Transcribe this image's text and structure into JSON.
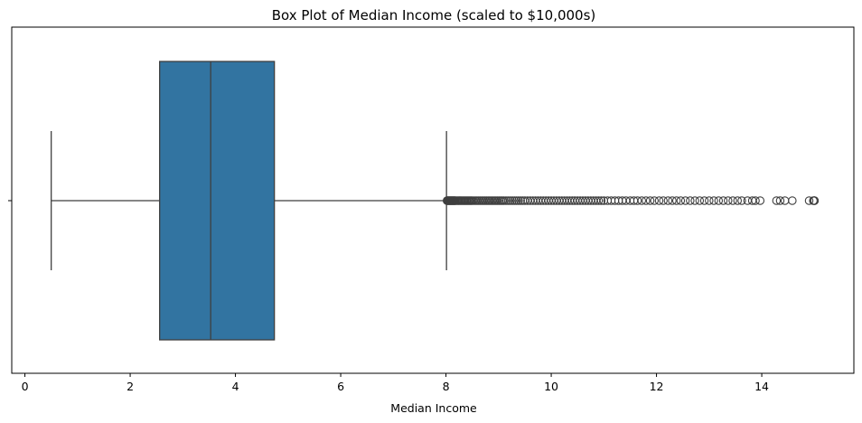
{
  "chart_data": {
    "type": "box",
    "title": "Box Plot of Median Income (scaled to $10,000s)",
    "xlabel": "Median Income",
    "ylabel": "",
    "xlim": [
      -0.25,
      15.75
    ],
    "xticks": [
      0,
      2,
      4,
      6,
      8,
      10,
      12,
      14
    ],
    "orientation": "horizontal",
    "grid": false,
    "box": {
      "whisker_low": 0.5,
      "q1": 2.56,
      "median": 3.53,
      "q3": 4.74,
      "whisker_high": 8.01,
      "fill_color": "#3274a1",
      "edge_color": "#3f3f3f"
    },
    "outliers": [
      8.02,
      8.03,
      8.04,
      8.05,
      8.06,
      8.07,
      8.08,
      8.09,
      8.1,
      8.11,
      8.12,
      8.13,
      8.14,
      8.15,
      8.16,
      8.17,
      8.18,
      8.2,
      8.22,
      8.24,
      8.26,
      8.28,
      8.3,
      8.32,
      8.34,
      8.36,
      8.38,
      8.4,
      8.42,
      8.44,
      8.46,
      8.48,
      8.5,
      8.53,
      8.56,
      8.59,
      8.62,
      8.65,
      8.68,
      8.71,
      8.74,
      8.77,
      8.8,
      8.83,
      8.86,
      8.89,
      8.92,
      8.95,
      8.98,
      9.01,
      9.04,
      9.07,
      9.1,
      9.14,
      9.18,
      9.22,
      9.26,
      9.3,
      9.34,
      9.38,
      9.42,
      9.46,
      9.5,
      9.55,
      9.6,
      9.65,
      9.7,
      9.75,
      9.8,
      9.85,
      9.9,
      9.95,
      10.0,
      10.05,
      10.1,
      10.15,
      10.2,
      10.25,
      10.3,
      10.35,
      10.4,
      10.45,
      10.5,
      10.55,
      10.6,
      10.65,
      10.7,
      10.75,
      10.8,
      10.85,
      10.9,
      10.95,
      11.0,
      11.07,
      11.14,
      11.21,
      11.28,
      11.35,
      11.42,
      11.5,
      11.57,
      11.64,
      11.72,
      11.8,
      11.88,
      11.96,
      12.05,
      12.13,
      12.22,
      12.3,
      12.38,
      12.46,
      12.55,
      12.64,
      12.73,
      12.82,
      12.91,
      13.0,
      13.09,
      13.18,
      13.27,
      13.36,
      13.45,
      13.54,
      13.62,
      13.73,
      13.82,
      13.88,
      13.97,
      14.28,
      14.35,
      14.44,
      14.58,
      14.9,
      14.98,
      15.0,
      15.0,
      15.0
    ]
  }
}
